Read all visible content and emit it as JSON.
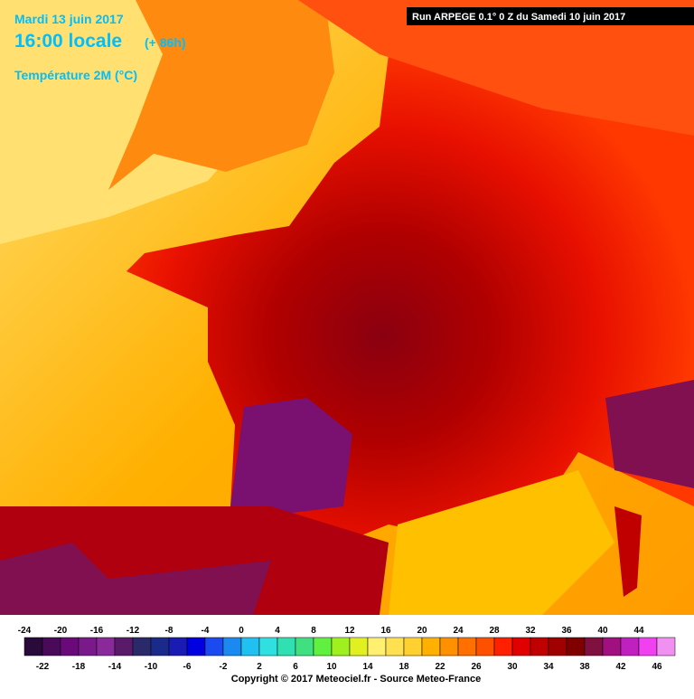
{
  "header": {
    "date": "Mardi 13 juin 2017",
    "time": "16:00 locale",
    "offset": "(+ 86h)",
    "parameter": "Température 2M (°C)",
    "run": "Run ARPEGE 0.1° 0 Z du Samedi 10 juin 2017"
  },
  "scale": [
    {
      "value": -24,
      "color": "#2a0a3a"
    },
    {
      "value": -22,
      "color": "#4a0a5a"
    },
    {
      "value": -20,
      "color": "#6a0a7a"
    },
    {
      "value": -18,
      "color": "#7a1a8a"
    },
    {
      "value": -16,
      "color": "#8a2a9a"
    },
    {
      "value": -14,
      "color": "#5a1a6a"
    },
    {
      "value": -12,
      "color": "#2a2a6a"
    },
    {
      "value": -10,
      "color": "#1a2a8a"
    },
    {
      "value": -8,
      "color": "#1a1ab4"
    },
    {
      "value": -6,
      "color": "#0000e0"
    },
    {
      "value": -4,
      "color": "#1a4af0"
    },
    {
      "value": -2,
      "color": "#1a8af0"
    },
    {
      "value": 0,
      "color": "#20c0f0"
    },
    {
      "value": 2,
      "color": "#30e0e0"
    },
    {
      "value": 4,
      "color": "#30e0b0"
    },
    {
      "value": 6,
      "color": "#40e080"
    },
    {
      "value": 8,
      "color": "#60f040"
    },
    {
      "value": 10,
      "color": "#a0f020"
    },
    {
      "value": 12,
      "color": "#e0f020"
    },
    {
      "value": 14,
      "color": "#fff070"
    },
    {
      "value": 16,
      "color": "#ffe050"
    },
    {
      "value": 18,
      "color": "#ffd030"
    },
    {
      "value": 20,
      "color": "#ffb000"
    },
    {
      "value": 22,
      "color": "#ff9000"
    },
    {
      "value": 24,
      "color": "#ff7000"
    },
    {
      "value": 26,
      "color": "#ff5000"
    },
    {
      "value": 28,
      "color": "#ff2000"
    },
    {
      "value": 30,
      "color": "#e00000"
    },
    {
      "value": 32,
      "color": "#c00000"
    },
    {
      "value": 34,
      "color": "#a00000"
    },
    {
      "value": 36,
      "color": "#800000"
    },
    {
      "value": 38,
      "color": "#801040"
    },
    {
      "value": 40,
      "color": "#a01080"
    },
    {
      "value": 42,
      "color": "#c020c0"
    },
    {
      "value": 44,
      "color": "#f040f0"
    },
    {
      "value": 46,
      "color": "#f090f0"
    }
  ],
  "footer": {
    "copyright": "Copyright © 2017 Meteociel.fr - Source Meteo-France"
  }
}
